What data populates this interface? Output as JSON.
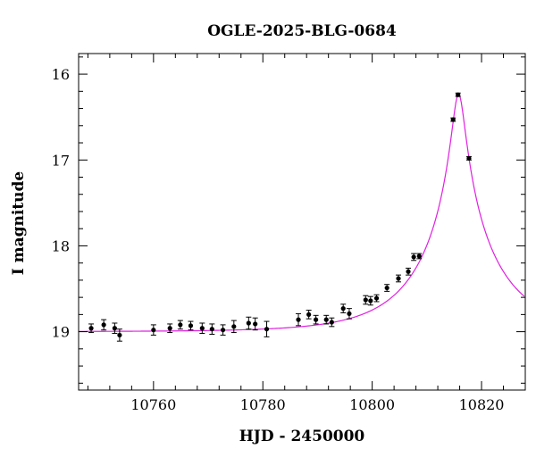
{
  "chart_data": {
    "type": "scatter",
    "title": "OGLE-2025-BLG-0684",
    "xlabel": "HJD - 2450000",
    "ylabel": "I magnitude",
    "xlim": [
      10746.3,
      10828
    ],
    "ylim": [
      19.68,
      15.76
    ],
    "y_inverted": true,
    "grid": false,
    "x_major_ticks": [
      10760,
      10780,
      10800,
      10820
    ],
    "x_tick_labels": [
      "10760",
      "10780",
      "10800",
      "10820"
    ],
    "x_minor_step": 4,
    "y_major_ticks": [
      16,
      17,
      18,
      19
    ],
    "y_tick_labels": [
      "16",
      "17",
      "18",
      "19"
    ],
    "y_minor_step": 0.2,
    "model_color": "#e020e0",
    "point_color": "#000000",
    "model": {
      "name": "",
      "baseline_mag": 19.0,
      "t0": 10815.8,
      "peak_mag": 16.23,
      "tE": 14,
      "curve_step": 0.25
    },
    "series": [
      {
        "name": "",
        "points": [
          {
            "x": 10748.6,
            "y": 18.96,
            "err": 0.05
          },
          {
            "x": 10750.9,
            "y": 18.92,
            "err": 0.06
          },
          {
            "x": 10752.9,
            "y": 18.96,
            "err": 0.06
          },
          {
            "x": 10753.8,
            "y": 19.04,
            "err": 0.07
          },
          {
            "x": 10760.0,
            "y": 18.98,
            "err": 0.06
          },
          {
            "x": 10763.0,
            "y": 18.96,
            "err": 0.05
          },
          {
            "x": 10764.9,
            "y": 18.92,
            "err": 0.05
          },
          {
            "x": 10766.8,
            "y": 18.93,
            "err": 0.05
          },
          {
            "x": 10768.9,
            "y": 18.96,
            "err": 0.06
          },
          {
            "x": 10770.7,
            "y": 18.97,
            "err": 0.06
          },
          {
            "x": 10772.7,
            "y": 18.98,
            "err": 0.06
          },
          {
            "x": 10774.7,
            "y": 18.94,
            "err": 0.07
          },
          {
            "x": 10777.4,
            "y": 18.9,
            "err": 0.07
          },
          {
            "x": 10778.6,
            "y": 18.91,
            "err": 0.07
          },
          {
            "x": 10780.7,
            "y": 18.97,
            "err": 0.09
          },
          {
            "x": 10786.5,
            "y": 18.86,
            "err": 0.07
          },
          {
            "x": 10788.4,
            "y": 18.8,
            "err": 0.05
          },
          {
            "x": 10789.7,
            "y": 18.86,
            "err": 0.05
          },
          {
            "x": 10791.6,
            "y": 18.86,
            "err": 0.05
          },
          {
            "x": 10792.6,
            "y": 18.89,
            "err": 0.05
          },
          {
            "x": 10794.7,
            "y": 18.73,
            "err": 0.05
          },
          {
            "x": 10795.8,
            "y": 18.79,
            "err": 0.06
          },
          {
            "x": 10798.8,
            "y": 18.63,
            "err": 0.05
          },
          {
            "x": 10799.7,
            "y": 18.64,
            "err": 0.05
          },
          {
            "x": 10800.8,
            "y": 18.61,
            "err": 0.04
          },
          {
            "x": 10802.7,
            "y": 18.49,
            "err": 0.04
          },
          {
            "x": 10804.8,
            "y": 18.38,
            "err": 0.04
          },
          {
            "x": 10806.6,
            "y": 18.3,
            "err": 0.04
          },
          {
            "x": 10807.6,
            "y": 18.13,
            "err": 0.04
          },
          {
            "x": 10808.6,
            "y": 18.12,
            "err": 0.03
          },
          {
            "x": 10814.8,
            "y": 16.53,
            "err": 0.02
          },
          {
            "x": 10815.7,
            "y": 16.24,
            "err": 0.02
          },
          {
            "x": 10817.7,
            "y": 16.98,
            "err": 0.02
          }
        ]
      }
    ]
  }
}
